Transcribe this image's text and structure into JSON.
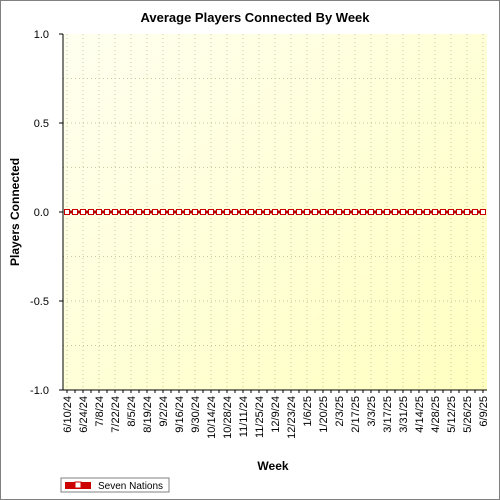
{
  "chart_data": {
    "type": "line",
    "title": "Average Players Connected By Week",
    "xlabel": "Week",
    "ylabel": "Players Connected",
    "ylim": [
      -1.0,
      1.0
    ],
    "yticks": [
      "1.0",
      "0.5",
      "0.0",
      "-0.5",
      "-1.0"
    ],
    "ytick_values": [
      1.0,
      0.5,
      0.0,
      -0.5,
      -1.0
    ],
    "x_tick_labels": [
      "6/10/24",
      "6/24/24",
      "7/8/24",
      "7/22/24",
      "8/5/24",
      "8/19/24",
      "9/2/24",
      "9/16/24",
      "9/30/24",
      "10/14/24",
      "10/28/24",
      "11/11/24",
      "11/25/24",
      "12/9/24",
      "12/23/24",
      "1/6/25",
      "1/20/25",
      "2/3/25",
      "2/17/25",
      "3/3/25",
      "3/17/25",
      "3/31/25",
      "4/14/25",
      "4/28/25",
      "5/12/25",
      "5/26/25",
      "6/9/25"
    ],
    "x": [
      "6/10/24",
      "6/17/24",
      "6/24/24",
      "7/1/24",
      "7/8/24",
      "7/15/24",
      "7/22/24",
      "7/29/24",
      "8/5/24",
      "8/12/24",
      "8/19/24",
      "8/26/24",
      "9/2/24",
      "9/9/24",
      "9/16/24",
      "9/23/24",
      "9/30/24",
      "10/7/24",
      "10/14/24",
      "10/21/24",
      "10/28/24",
      "11/4/24",
      "11/11/24",
      "11/18/24",
      "11/25/24",
      "12/2/24",
      "12/9/24",
      "12/16/24",
      "12/23/24",
      "12/30/24",
      "1/6/25",
      "1/13/25",
      "1/20/25",
      "1/27/25",
      "2/3/25",
      "2/10/25",
      "2/17/25",
      "2/24/25",
      "3/3/25",
      "3/10/25",
      "3/17/25",
      "3/24/25",
      "3/31/25",
      "4/7/25",
      "4/14/25",
      "4/21/25",
      "4/28/25",
      "5/5/25",
      "5/12/25",
      "5/19/25",
      "5/26/25",
      "6/2/25",
      "6/9/25"
    ],
    "series": [
      {
        "name": "Seven Nations",
        "color": "#cc0000",
        "values": [
          0,
          0,
          0,
          0,
          0,
          0,
          0,
          0,
          0,
          0,
          0,
          0,
          0,
          0,
          0,
          0,
          0,
          0,
          0,
          0,
          0,
          0,
          0,
          0,
          0,
          0,
          0,
          0,
          0,
          0,
          0,
          0,
          0,
          0,
          0,
          0,
          0,
          0,
          0,
          0,
          0,
          0,
          0,
          0,
          0,
          0,
          0,
          0,
          0,
          0,
          0,
          0,
          0
        ]
      }
    ],
    "grid": true,
    "legend_position": "bottom-left",
    "plot_background": [
      "#fffff0",
      "#ffffc0"
    ]
  }
}
